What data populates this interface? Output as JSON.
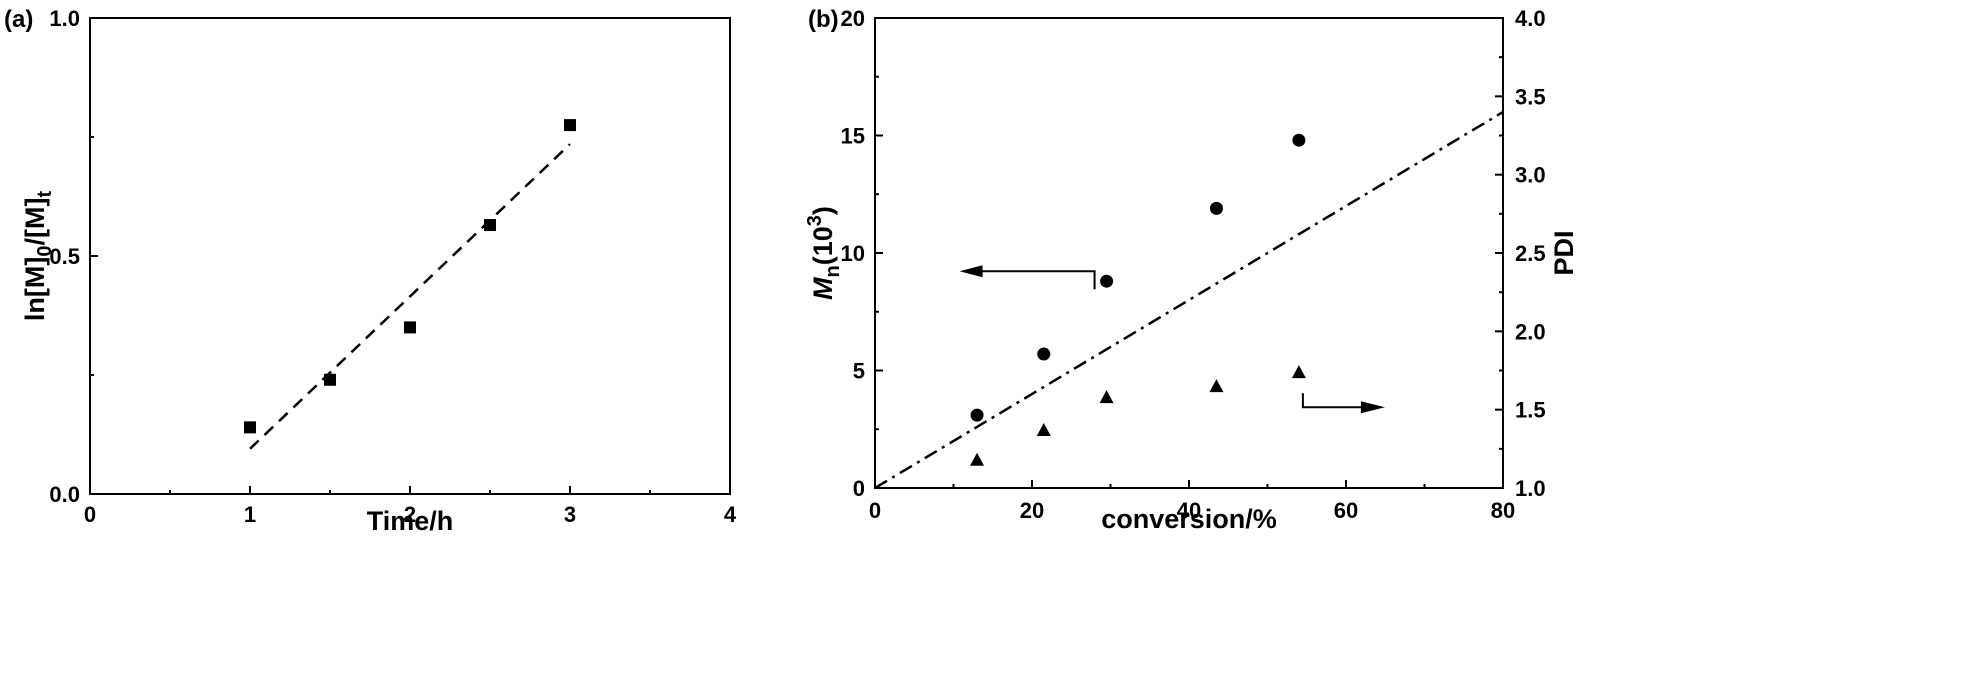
{
  "chart_data": [
    {
      "panel_label": "(a)",
      "type": "scatter",
      "xlabel": "Time/h",
      "ylabel": {
        "main": "ln[M]",
        "sub1": "0",
        "mid": "/[M]",
        "sub2": "t"
      },
      "xlim": [
        0,
        4
      ],
      "ylim": [
        0,
        1.0
      ],
      "x_ticks": [
        "0",
        "1",
        "2",
        "3",
        "4"
      ],
      "y_ticks": [
        "0.0",
        "0.5",
        "1.0"
      ],
      "series": [
        {
          "marker": "square",
          "x": [
            1.0,
            1.5,
            2.0,
            2.5,
            3.0
          ],
          "y": [
            0.14,
            0.24,
            0.35,
            0.565,
            0.775
          ]
        }
      ],
      "fit_line": {
        "style": "dashed",
        "x": [
          1.0,
          3.0
        ],
        "y": [
          0.095,
          0.735
        ]
      }
    },
    {
      "panel_label": "(b)",
      "type": "scatter",
      "xlabel": "conversion/%",
      "ylabel_left": {
        "main": "M",
        "sub": "n",
        "rest": "(10",
        "sup": "3",
        "close": ")"
      },
      "ylabel_right": "PDI",
      "xlim": [
        0,
        80
      ],
      "ylim_left": [
        0,
        20
      ],
      "ylim_right": [
        1.0,
        4.0
      ],
      "x_ticks": [
        "0",
        "20",
        "40",
        "60",
        "80"
      ],
      "y_ticks_left": [
        "0",
        "5",
        "10",
        "15",
        "20"
      ],
      "y_ticks_right": [
        "1.0",
        "1.5",
        "2.0",
        "2.5",
        "3.0",
        "3.5",
        "4.0"
      ],
      "series": [
        {
          "marker": "circle",
          "axis": "left",
          "x": [
            13,
            21.5,
            29.5,
            43.5,
            54
          ],
          "y": [
            3.1,
            5.7,
            8.8,
            11.9,
            14.8
          ]
        },
        {
          "marker": "triangle",
          "axis": "right",
          "x": [
            13,
            21.5,
            29.5,
            43.5,
            54
          ],
          "y": [
            1.18,
            1.37,
            1.58,
            1.65,
            1.74
          ]
        }
      ],
      "theory_line": {
        "style": "dash-dot",
        "axis": "left",
        "x": [
          0,
          80
        ],
        "y": [
          0,
          16.0
        ]
      },
      "arrows": [
        {
          "points_to": "left",
          "near_x": 29.5,
          "near_y": 8.8
        },
        {
          "points_to": "right",
          "near_x": 54,
          "near_y": 4.8
        }
      ]
    }
  ]
}
